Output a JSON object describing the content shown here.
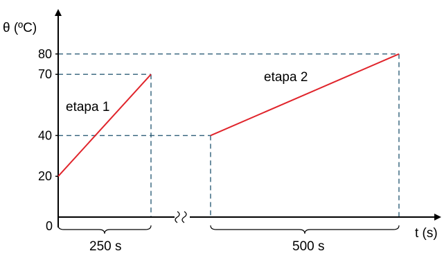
{
  "chart_data": {
    "type": "line",
    "title": "",
    "xlabel": "t (s)",
    "ylabel": "θ (ºC)",
    "origin_label": "0",
    "y_ticks": [
      20,
      40,
      70,
      80
    ],
    "axis_break": true,
    "grid": false,
    "colors": {
      "series": "#e0242b",
      "guides": "#2e5e78",
      "axis": "#000000"
    },
    "series": [
      {
        "name": "etapa 1",
        "duration": "250 s",
        "start_y": 20,
        "end_y": 70
      },
      {
        "name": "etapa 2",
        "duration": "500 s",
        "start_y": 40,
        "end_y": 80
      }
    ]
  }
}
